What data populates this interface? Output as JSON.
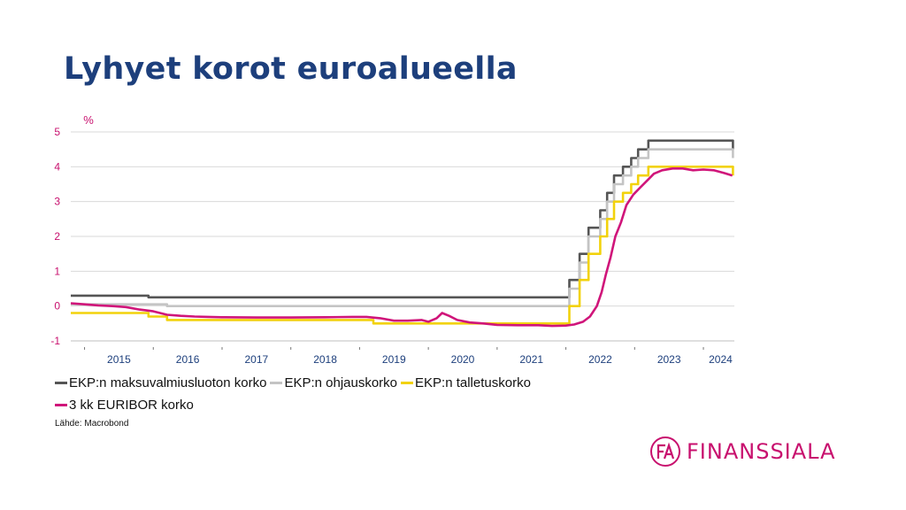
{
  "page": {
    "title": "Lyhyet korot euroalueella"
  },
  "source": {
    "text": "Lähde: Macrobond"
  },
  "logo": {
    "text": "FINANSSIALA",
    "color": "#c8106e"
  },
  "chart_data": {
    "type": "line",
    "unit_label": "%",
    "xlim": [
      2014.8,
      2024.45
    ],
    "ylim": [
      -1,
      5
    ],
    "yticks": [
      -1,
      0,
      1,
      2,
      3,
      4,
      5
    ],
    "xtick_labels": [
      {
        "label": "2015",
        "x": 2015.5
      },
      {
        "label": "2016",
        "x": 2016.5
      },
      {
        "label": "2017",
        "x": 2017.5
      },
      {
        "label": "2018",
        "x": 2018.5
      },
      {
        "label": "2019",
        "x": 2019.5
      },
      {
        "label": "2020",
        "x": 2020.5
      },
      {
        "label": "2021",
        "x": 2021.5
      },
      {
        "label": "2022",
        "x": 2022.5
      },
      {
        "label": "2023",
        "x": 2023.5
      },
      {
        "label": "2024",
        "x": 2024.25
      }
    ],
    "year_boundaries": [
      2015,
      2016,
      2017,
      2018,
      2019,
      2020,
      2021,
      2022,
      2023,
      2024
    ],
    "grid": true,
    "legend_position": "bottom",
    "series": [
      {
        "name": "EKP:n maksuvalmiusluoton korko",
        "color": "#555555",
        "step": true,
        "points": [
          [
            2014.8,
            0.3
          ],
          [
            2015.93,
            0.3
          ],
          [
            2015.93,
            0.25
          ],
          [
            2022.05,
            0.25
          ],
          [
            2022.05,
            0.75
          ],
          [
            2022.2,
            0.75
          ],
          [
            2022.2,
            1.5
          ],
          [
            2022.33,
            1.5
          ],
          [
            2022.33,
            2.25
          ],
          [
            2022.5,
            2.25
          ],
          [
            2022.5,
            2.75
          ],
          [
            2022.6,
            2.75
          ],
          [
            2022.6,
            3.25
          ],
          [
            2022.7,
            3.25
          ],
          [
            2022.7,
            3.75
          ],
          [
            2022.83,
            3.75
          ],
          [
            2022.83,
            4.0
          ],
          [
            2022.95,
            4.0
          ],
          [
            2022.95,
            4.25
          ],
          [
            2023.05,
            4.25
          ],
          [
            2023.05,
            4.5
          ],
          [
            2023.2,
            4.5
          ],
          [
            2023.2,
            4.75
          ],
          [
            2024.43,
            4.75
          ],
          [
            2024.43,
            4.5
          ]
        ]
      },
      {
        "name": "EKP:n ohjauskorko",
        "color": "#c4c4c4",
        "step": true,
        "points": [
          [
            2014.8,
            0.05
          ],
          [
            2016.2,
            0.05
          ],
          [
            2016.2,
            0.0
          ],
          [
            2022.05,
            0.0
          ],
          [
            2022.05,
            0.5
          ],
          [
            2022.2,
            0.5
          ],
          [
            2022.2,
            1.25
          ],
          [
            2022.33,
            1.25
          ],
          [
            2022.33,
            2.0
          ],
          [
            2022.5,
            2.0
          ],
          [
            2022.5,
            2.5
          ],
          [
            2022.6,
            2.5
          ],
          [
            2022.6,
            3.0
          ],
          [
            2022.7,
            3.0
          ],
          [
            2022.7,
            3.5
          ],
          [
            2022.83,
            3.5
          ],
          [
            2022.83,
            3.75
          ],
          [
            2022.95,
            3.75
          ],
          [
            2022.95,
            4.0
          ],
          [
            2023.05,
            4.0
          ],
          [
            2023.05,
            4.25
          ],
          [
            2023.2,
            4.25
          ],
          [
            2023.2,
            4.5
          ],
          [
            2024.43,
            4.5
          ],
          [
            2024.43,
            4.25
          ]
        ]
      },
      {
        "name": "EKP:n talletuskorko",
        "color": "#f2d20c",
        "step": true,
        "points": [
          [
            2014.8,
            -0.2
          ],
          [
            2015.93,
            -0.2
          ],
          [
            2015.93,
            -0.3
          ],
          [
            2016.2,
            -0.3
          ],
          [
            2016.2,
            -0.4
          ],
          [
            2019.2,
            -0.4
          ],
          [
            2019.2,
            -0.5
          ],
          [
            2022.05,
            -0.5
          ],
          [
            2022.05,
            0.0
          ],
          [
            2022.2,
            0.0
          ],
          [
            2022.2,
            0.75
          ],
          [
            2022.33,
            0.75
          ],
          [
            2022.33,
            1.5
          ],
          [
            2022.5,
            1.5
          ],
          [
            2022.5,
            2.0
          ],
          [
            2022.6,
            2.0
          ],
          [
            2022.6,
            2.5
          ],
          [
            2022.7,
            2.5
          ],
          [
            2022.7,
            3.0
          ],
          [
            2022.83,
            3.0
          ],
          [
            2022.83,
            3.25
          ],
          [
            2022.95,
            3.25
          ],
          [
            2022.95,
            3.5
          ],
          [
            2023.05,
            3.5
          ],
          [
            2023.05,
            3.75
          ],
          [
            2023.2,
            3.75
          ],
          [
            2023.2,
            4.0
          ],
          [
            2024.43,
            4.0
          ],
          [
            2024.43,
            3.75
          ]
        ]
      },
      {
        "name": "3 kk EURIBOR korko",
        "color": "#d0157a",
        "step": false,
        "points": [
          [
            2014.8,
            0.08
          ],
          [
            2015.0,
            0.05
          ],
          [
            2015.2,
            0.02
          ],
          [
            2015.4,
            0.0
          ],
          [
            2015.6,
            -0.03
          ],
          [
            2015.8,
            -0.1
          ],
          [
            2016.0,
            -0.15
          ],
          [
            2016.2,
            -0.25
          ],
          [
            2016.4,
            -0.28
          ],
          [
            2016.6,
            -0.3
          ],
          [
            2016.8,
            -0.31
          ],
          [
            2017.0,
            -0.32
          ],
          [
            2017.5,
            -0.33
          ],
          [
            2018.0,
            -0.33
          ],
          [
            2018.5,
            -0.32
          ],
          [
            2018.9,
            -0.31
          ],
          [
            2019.1,
            -0.31
          ],
          [
            2019.3,
            -0.35
          ],
          [
            2019.5,
            -0.42
          ],
          [
            2019.7,
            -0.42
          ],
          [
            2019.9,
            -0.4
          ],
          [
            2020.0,
            -0.45
          ],
          [
            2020.12,
            -0.35
          ],
          [
            2020.2,
            -0.2
          ],
          [
            2020.3,
            -0.28
          ],
          [
            2020.42,
            -0.4
          ],
          [
            2020.6,
            -0.47
          ],
          [
            2020.8,
            -0.5
          ],
          [
            2021.0,
            -0.54
          ],
          [
            2021.3,
            -0.55
          ],
          [
            2021.6,
            -0.55
          ],
          [
            2021.8,
            -0.57
          ],
          [
            2022.0,
            -0.56
          ],
          [
            2022.12,
            -0.53
          ],
          [
            2022.25,
            -0.45
          ],
          [
            2022.35,
            -0.3
          ],
          [
            2022.45,
            0.0
          ],
          [
            2022.52,
            0.4
          ],
          [
            2022.58,
            0.9
          ],
          [
            2022.65,
            1.4
          ],
          [
            2022.72,
            2.0
          ],
          [
            2022.8,
            2.4
          ],
          [
            2022.88,
            2.9
          ],
          [
            2022.98,
            3.2
          ],
          [
            2023.08,
            3.4
          ],
          [
            2023.18,
            3.6
          ],
          [
            2023.28,
            3.8
          ],
          [
            2023.4,
            3.9
          ],
          [
            2023.55,
            3.95
          ],
          [
            2023.7,
            3.95
          ],
          [
            2023.85,
            3.9
          ],
          [
            2024.0,
            3.92
          ],
          [
            2024.15,
            3.9
          ],
          [
            2024.3,
            3.82
          ],
          [
            2024.42,
            3.75
          ]
        ]
      }
    ]
  }
}
